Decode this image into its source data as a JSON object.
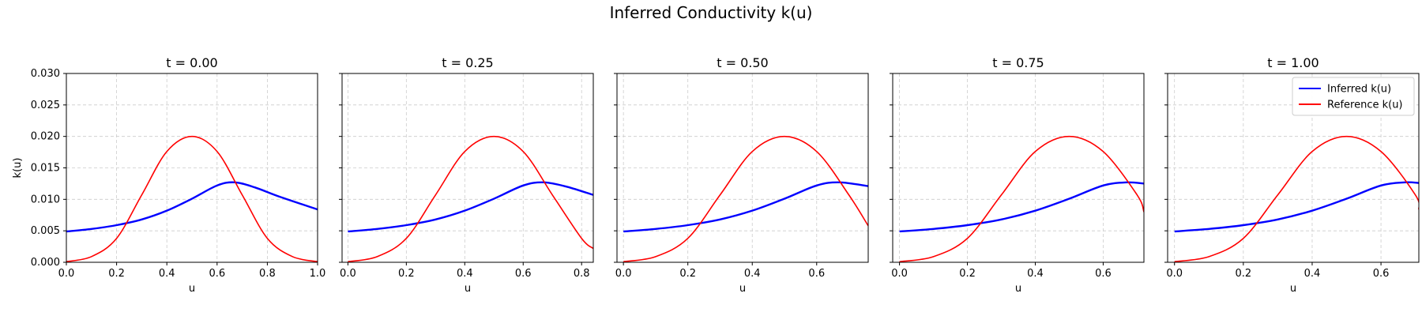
{
  "figure": {
    "title": "Inferred Conductivity k(u)",
    "xlabel": "u",
    "ylabel": "k(u)"
  },
  "legend": {
    "items": [
      {
        "label": "Inferred k(u)",
        "color": "#0000ff"
      },
      {
        "label": "Reference k(u)",
        "color": "#ff0000"
      }
    ],
    "placement": "top-right of last panel"
  },
  "colors": {
    "inferred": "#0000ff",
    "reference": "#ff0000",
    "grid": "#cccccc"
  },
  "chart_data": [
    {
      "type": "line",
      "title": "t = 0.00",
      "xlim": [
        0.0,
        1.0
      ],
      "ylim": [
        0.0,
        0.03
      ],
      "xticks": [
        "0.0",
        "0.2",
        "0.4",
        "0.6",
        "0.8",
        "1.0"
      ],
      "yticks": [
        "0.000",
        "0.005",
        "0.010",
        "0.015",
        "0.020",
        "0.025",
        "0.030"
      ],
      "grid": true,
      "series": [
        {
          "name": "Inferred k(u)",
          "x": [
            0.0,
            0.1,
            0.2,
            0.3,
            0.4,
            0.5,
            0.6,
            0.67,
            0.75,
            0.85,
            1.0
          ],
          "y": [
            0.0049,
            0.0053,
            0.0059,
            0.0068,
            0.0082,
            0.0101,
            0.0122,
            0.0127,
            0.0119,
            0.0104,
            0.0084
          ]
        },
        {
          "name": "Reference k(u)",
          "x": [
            0.0,
            0.1,
            0.2,
            0.3,
            0.4,
            0.5,
            0.6,
            0.7,
            0.8,
            0.9,
            1.0
          ],
          "y": [
            0.0001,
            0.0009,
            0.0038,
            0.0107,
            0.0176,
            0.02,
            0.0176,
            0.0107,
            0.0038,
            0.0009,
            0.0001
          ]
        }
      ]
    },
    {
      "type": "line",
      "title": "t = 0.25",
      "xlim": [
        -0.02,
        0.84
      ],
      "ylim": [
        0.0,
        0.03
      ],
      "xticks": [
        "0.0",
        "0.2",
        "0.4",
        "0.6",
        "0.8"
      ],
      "grid": true,
      "series": [
        {
          "name": "Inferred k(u)",
          "x": [
            0.0,
            0.1,
            0.2,
            0.3,
            0.4,
            0.5,
            0.6,
            0.67,
            0.75,
            0.84
          ],
          "y": [
            0.0049,
            0.0053,
            0.0059,
            0.0068,
            0.0082,
            0.0101,
            0.0122,
            0.0127,
            0.012,
            0.0107
          ]
        },
        {
          "name": "Reference k(u)",
          "x": [
            0.0,
            0.1,
            0.2,
            0.3,
            0.4,
            0.5,
            0.6,
            0.7,
            0.8,
            0.84
          ],
          "y": [
            0.0001,
            0.0009,
            0.0038,
            0.0107,
            0.0176,
            0.02,
            0.0176,
            0.0107,
            0.0038,
            0.0022
          ]
        }
      ]
    },
    {
      "type": "line",
      "title": "t = 0.50",
      "xlim": [
        -0.02,
        0.76
      ],
      "ylim": [
        0.0,
        0.03
      ],
      "xticks": [
        "0.0",
        "0.2",
        "0.4",
        "0.6"
      ],
      "grid": true,
      "series": [
        {
          "name": "Inferred k(u)",
          "x": [
            0.0,
            0.1,
            0.2,
            0.3,
            0.4,
            0.5,
            0.6,
            0.67,
            0.76
          ],
          "y": [
            0.0049,
            0.0053,
            0.0059,
            0.0068,
            0.0082,
            0.0101,
            0.0122,
            0.0127,
            0.0121
          ]
        },
        {
          "name": "Reference k(u)",
          "x": [
            0.0,
            0.1,
            0.2,
            0.3,
            0.4,
            0.5,
            0.6,
            0.7,
            0.76
          ],
          "y": [
            0.0001,
            0.0009,
            0.0038,
            0.0107,
            0.0176,
            0.02,
            0.0176,
            0.0107,
            0.0058
          ]
        }
      ]
    },
    {
      "type": "line",
      "title": "t = 0.75",
      "xlim": [
        -0.02,
        0.72
      ],
      "ylim": [
        0.0,
        0.03
      ],
      "xticks": [
        "0.0",
        "0.2",
        "0.4",
        "0.6"
      ],
      "grid": true,
      "series": [
        {
          "name": "Inferred k(u)",
          "x": [
            0.0,
            0.1,
            0.2,
            0.3,
            0.4,
            0.5,
            0.6,
            0.67,
            0.72
          ],
          "y": [
            0.0049,
            0.0053,
            0.0059,
            0.0068,
            0.0082,
            0.0101,
            0.0122,
            0.0127,
            0.0125
          ]
        },
        {
          "name": "Reference k(u)",
          "x": [
            0.0,
            0.1,
            0.2,
            0.3,
            0.4,
            0.5,
            0.6,
            0.7,
            0.72
          ],
          "y": [
            0.0001,
            0.0009,
            0.0038,
            0.0107,
            0.0176,
            0.02,
            0.0176,
            0.0107,
            0.008
          ]
        }
      ]
    },
    {
      "type": "line",
      "title": "t = 1.00",
      "xlim": [
        -0.02,
        0.71
      ],
      "ylim": [
        0.0,
        0.03
      ],
      "xticks": [
        "0.0",
        "0.2",
        "0.4",
        "0.6"
      ],
      "grid": true,
      "series": [
        {
          "name": "Inferred k(u)",
          "x": [
            0.0,
            0.1,
            0.2,
            0.3,
            0.4,
            0.5,
            0.6,
            0.67,
            0.71
          ],
          "y": [
            0.0049,
            0.0053,
            0.0059,
            0.0068,
            0.0082,
            0.0101,
            0.0122,
            0.0127,
            0.0126
          ]
        },
        {
          "name": "Reference k(u)",
          "x": [
            0.0,
            0.1,
            0.2,
            0.3,
            0.4,
            0.5,
            0.6,
            0.7,
            0.71
          ],
          "y": [
            0.0001,
            0.0009,
            0.0038,
            0.0107,
            0.0176,
            0.02,
            0.0176,
            0.0107,
            0.0084
          ]
        }
      ]
    }
  ]
}
